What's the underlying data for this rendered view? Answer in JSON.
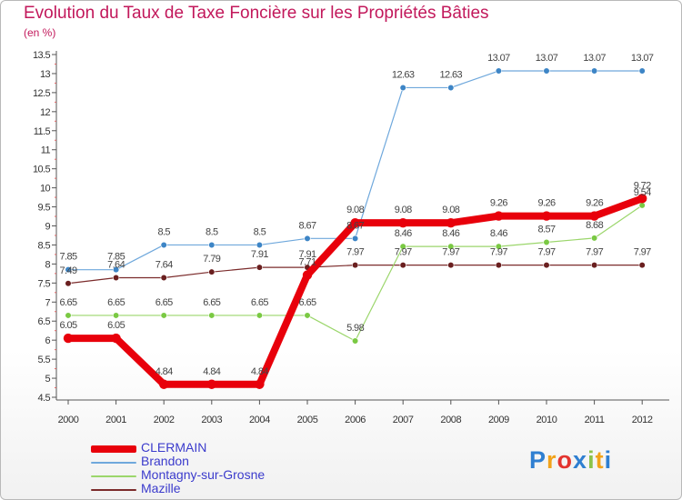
{
  "chart_data": {
    "type": "line",
    "title": "Evolution du Taux de Taxe Foncière sur les Propriétés Bâties",
    "subtitle": "(en %)",
    "xlabel": "",
    "ylabel": "",
    "categories": [
      "2000",
      "2001",
      "2002",
      "2003",
      "2004",
      "2005",
      "2006",
      "2007",
      "2008",
      "2009",
      "2010",
      "2011",
      "2012"
    ],
    "ylim": [
      4.5,
      13.5
    ],
    "yticks": [
      "4.5",
      "5",
      "5.5",
      "6",
      "6.5",
      "7",
      "7.5",
      "8",
      "8.5",
      "9",
      "9.5",
      "10",
      "10.5",
      "11",
      "11.5",
      "12",
      "12.5",
      "13",
      "13.5"
    ],
    "grid": false,
    "legend_position": "bottom-left",
    "series": [
      {
        "name": "CLERMAIN",
        "color": "#e8000b",
        "values": [
          6.05,
          6.05,
          4.84,
          4.84,
          4.84,
          7.71,
          9.08,
          9.08,
          9.08,
          9.26,
          9.26,
          9.26,
          9.72
        ],
        "labels": [
          "6.05",
          "6.05",
          "4.84",
          "4.84",
          "4.84",
          "7.71",
          "9.08",
          "9.08",
          "9.08",
          "9.26",
          "9.26",
          "9.26",
          "9.72"
        ]
      },
      {
        "name": "Brandon",
        "color": "#6fa8dc",
        "values": [
          7.85,
          7.85,
          8.5,
          8.5,
          8.5,
          8.67,
          8.67,
          12.63,
          12.63,
          13.07,
          13.07,
          13.07,
          13.07
        ],
        "labels": [
          "7.85",
          "7.85",
          "8.5",
          "8.5",
          "8.5",
          "8.67",
          "8.67",
          "12.63",
          "12.63",
          "13.07",
          "13.07",
          "13.07",
          "13.07"
        ]
      },
      {
        "name": "Montagny-sur-Grosne",
        "color": "#9bd66b",
        "values": [
          6.65,
          6.65,
          6.65,
          6.65,
          6.65,
          6.65,
          5.98,
          8.46,
          8.46,
          8.46,
          8.57,
          8.68,
          9.54
        ],
        "labels": [
          "6.65",
          "6.65",
          "6.65",
          "6.65",
          "6.65",
          "6.65",
          "5.98",
          "8.46",
          "8.46",
          "8.46",
          "8.57",
          "8.68",
          "9.54"
        ]
      },
      {
        "name": "Mazille",
        "color": "#7b2b2b",
        "values": [
          7.49,
          7.64,
          7.64,
          7.79,
          7.91,
          7.91,
          7.97,
          7.97,
          7.97,
          7.97,
          7.97,
          7.97,
          7.97
        ],
        "labels": [
          "7.49",
          "7.64",
          "7.64",
          "7.79",
          "7.91",
          "7.91",
          "7.97",
          "7.97",
          "7.97",
          "7.97",
          "7.97",
          "7.97",
          "7.97"
        ]
      }
    ]
  },
  "logo": {
    "text": "Proxiti",
    "letters": [
      "P",
      "r",
      "o",
      "x",
      "i",
      "t",
      "i"
    ],
    "colors": [
      "#2f7fd1",
      "#f2a31b",
      "#e3342f",
      "#2f7fd1",
      "#8bc34a",
      "#f2a31b",
      "#2f7fd1"
    ]
  }
}
